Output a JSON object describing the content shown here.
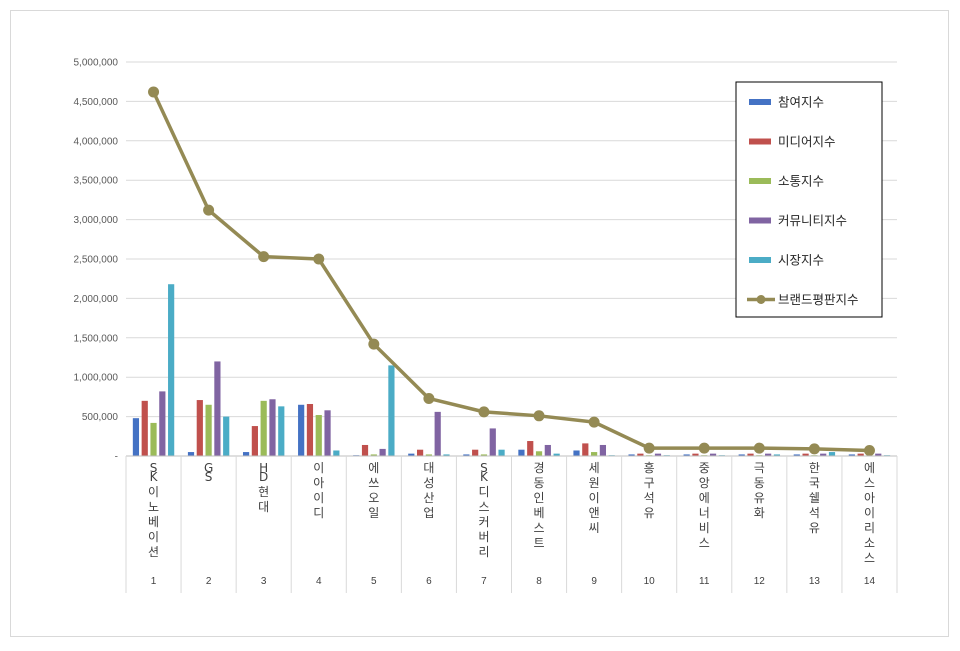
{
  "chart_data": {
    "type": "bar",
    "ylim": [
      0,
      5000000
    ],
    "y_ticks": [
      "-",
      "500,000",
      "1,000,000",
      "1,500,000",
      "2,000,000",
      "2,500,000",
      "3,000,000",
      "3,500,000",
      "4,000,000",
      "4,500,000",
      "5,000,000"
    ],
    "grid": true,
    "legend_position": "top-right",
    "categories": [
      "SK이노베이션",
      "GS",
      "HD현대",
      "이아이디",
      "에쓰오일",
      "대성산업",
      "SK디스커버리",
      "경동인베스트",
      "세원이앤씨",
      "흥구석유",
      "중앙에너비스",
      "극동유화",
      "한국쉘석유",
      "에스아이리소스"
    ],
    "category_index": [
      "1",
      "2",
      "3",
      "4",
      "5",
      "6",
      "7",
      "8",
      "9",
      "10",
      "11",
      "12",
      "13",
      "14"
    ],
    "colors": {
      "참여지수": "#4472c4",
      "미디어지수": "#c0504d",
      "소통지수": "#9bbb59",
      "커뮤니티지수": "#8064a2",
      "시장지수": "#4bacc6",
      "브랜드평판지수": "#948a54"
    },
    "series": [
      {
        "name": "참여지수",
        "kind": "bar",
        "values": [
          480000,
          50000,
          50000,
          650000,
          10000,
          30000,
          20000,
          80000,
          70000,
          20000,
          20000,
          20000,
          20000,
          20000
        ]
      },
      {
        "name": "미디어지수",
        "kind": "bar",
        "values": [
          700000,
          710000,
          380000,
          660000,
          140000,
          80000,
          80000,
          190000,
          160000,
          30000,
          30000,
          30000,
          30000,
          30000
        ]
      },
      {
        "name": "소통지수",
        "kind": "bar",
        "values": [
          420000,
          650000,
          700000,
          520000,
          20000,
          20000,
          20000,
          60000,
          50000,
          10000,
          10000,
          10000,
          10000,
          10000
        ]
      },
      {
        "name": "커뮤니티지수",
        "kind": "bar",
        "values": [
          820000,
          1200000,
          720000,
          580000,
          90000,
          560000,
          350000,
          140000,
          140000,
          30000,
          30000,
          30000,
          30000,
          30000
        ]
      },
      {
        "name": "시장지수",
        "kind": "bar",
        "values": [
          2180000,
          500000,
          630000,
          70000,
          1150000,
          20000,
          80000,
          30000,
          10000,
          10000,
          10000,
          20000,
          50000,
          10000
        ]
      },
      {
        "name": "브랜드평판지수",
        "kind": "line",
        "values": [
          4620000,
          3120000,
          2530000,
          2500000,
          1420000,
          730000,
          560000,
          510000,
          430000,
          100000,
          100000,
          100000,
          90000,
          70000
        ]
      }
    ]
  }
}
